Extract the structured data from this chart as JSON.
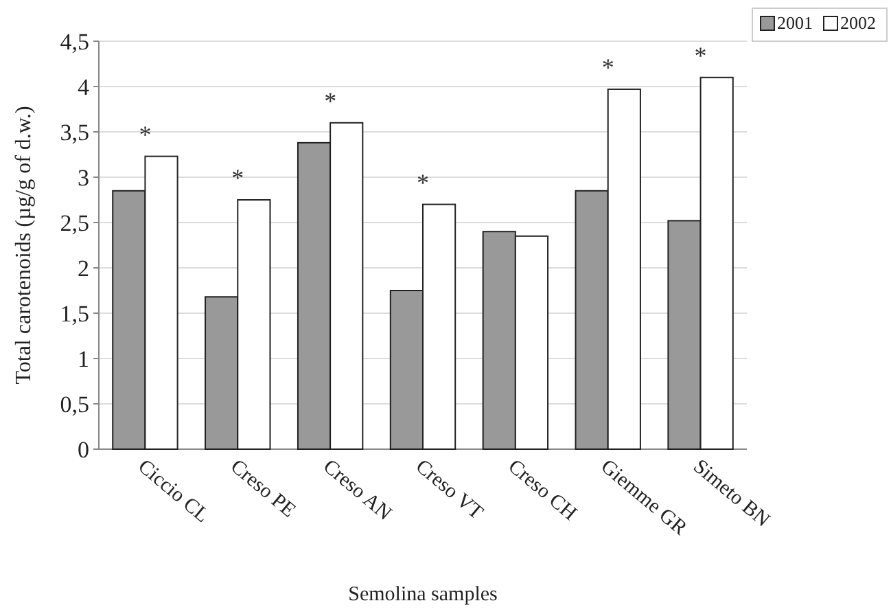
{
  "chart_data": {
    "type": "bar",
    "xlabel": "Semolina samples",
    "ylabel": "Total carotenoids (µg/g of d.w.)",
    "categories": [
      "Ciccio CL",
      "Creso PE",
      "Creso AN",
      "Creso VT",
      "Creso CH",
      "Giemme GR",
      "Simeto BN"
    ],
    "series": [
      {
        "name": "2001",
        "color": "#999999",
        "values": [
          2.85,
          1.68,
          3.38,
          1.75,
          2.4,
          2.85,
          2.52
        ]
      },
      {
        "name": "2002",
        "color": "#ffffff",
        "values": [
          3.23,
          2.75,
          3.6,
          2.7,
          2.35,
          3.97,
          4.1
        ]
      }
    ],
    "ylim": [
      0,
      4.5
    ],
    "yticks": [
      0,
      {
        "value": 0.5,
        "label": "0,5"
      },
      1,
      {
        "value": 1.5,
        "label": "1,5"
      },
      2,
      {
        "value": 2.5,
        "label": "2,5"
      },
      3,
      {
        "value": 3.5,
        "label": "3,5"
      },
      4,
      {
        "value": 4.5,
        "label": "4,5"
      }
    ],
    "grid": "y",
    "legend": "top right",
    "annotations": [
      {
        "text": "*",
        "x": "Ciccio CL",
        "y": 3.23
      },
      {
        "text": "*",
        "x": "Creso PE",
        "y": 2.75
      },
      {
        "text": "*",
        "x": "Creso AN",
        "y": 3.6
      },
      {
        "text": "*",
        "x": "Creso VT",
        "y": 2.7
      },
      {
        "text": "*",
        "x": "Giemme GR",
        "y": 3.97
      },
      {
        "text": "*",
        "x": "Simeto BN",
        "y": 4.1
      }
    ]
  }
}
